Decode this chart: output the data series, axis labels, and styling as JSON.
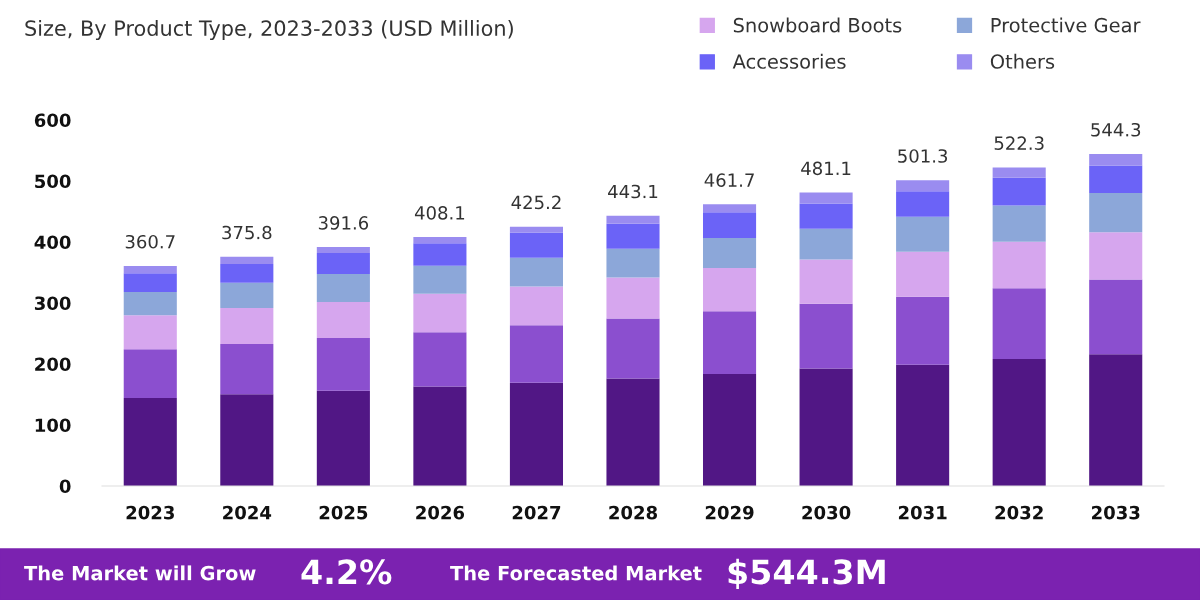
{
  "chart_data": {
    "type": "bar",
    "stacked": true,
    "subtitle": "Size, By Product Type, 2023-2033 (USD Million)",
    "categories": [
      "2023",
      "2024",
      "2025",
      "2026",
      "2027",
      "2028",
      "2029",
      "2030",
      "2031",
      "2032",
      "2033"
    ],
    "series": [
      {
        "color": "#511785",
        "values": [
          144.4,
          150.3,
          156.1,
          163.2,
          169.1,
          176.2,
          183.8,
          192.6,
          198.9,
          208.3,
          215.9
        ]
      },
      {
        "color": "#8b4fcf",
        "values": [
          79.6,
          82.5,
          86.6,
          88.9,
          94.3,
          98.2,
          102.5,
          106.3,
          111.4,
          115.8,
          122.7
        ]
      },
      {
        "name": "Snowboard Boots",
        "color": "#d6a6ee",
        "values": [
          55.9,
          58.9,
          59.0,
          63.2,
          63.7,
          67.3,
          71.2,
          72.4,
          73.6,
          76.2,
          77.4
        ]
      },
      {
        "name": "Protective Gear",
        "color": "#8ca7d9",
        "values": [
          38.1,
          41.3,
          46.0,
          45.9,
          47.2,
          47.2,
          49.0,
          50.3,
          57.3,
          59.7,
          64.2
        ]
      },
      {
        "name": "Accessories",
        "color": "#6b63f7",
        "values": [
          30.8,
          31.0,
          34.1,
          36.7,
          41.2,
          40.9,
          42.2,
          41.6,
          42.1,
          45.3,
          45.3
        ]
      },
      {
        "name": "Others",
        "color": "#9a8cf0",
        "values": [
          11.9,
          11.8,
          9.8,
          10.2,
          9.7,
          13.3,
          13.0,
          17.9,
          18.0,
          17.0,
          18.8
        ]
      }
    ],
    "totals": [
      "360.7",
      "375.8",
      "391.6",
      "408.1",
      "425.2",
      "443.1",
      "461.7",
      "481.1",
      "501.3",
      "522.3",
      "544.3"
    ],
    "ylim": [
      0,
      600
    ],
    "yticks": [
      0,
      100,
      200,
      300,
      400,
      500,
      600
    ],
    "grid": false,
    "legend": "top right",
    "annotations": [
      "The Market will Grow",
      "4.2%",
      "The Forecasted Market",
      "$544.3M"
    ]
  }
}
